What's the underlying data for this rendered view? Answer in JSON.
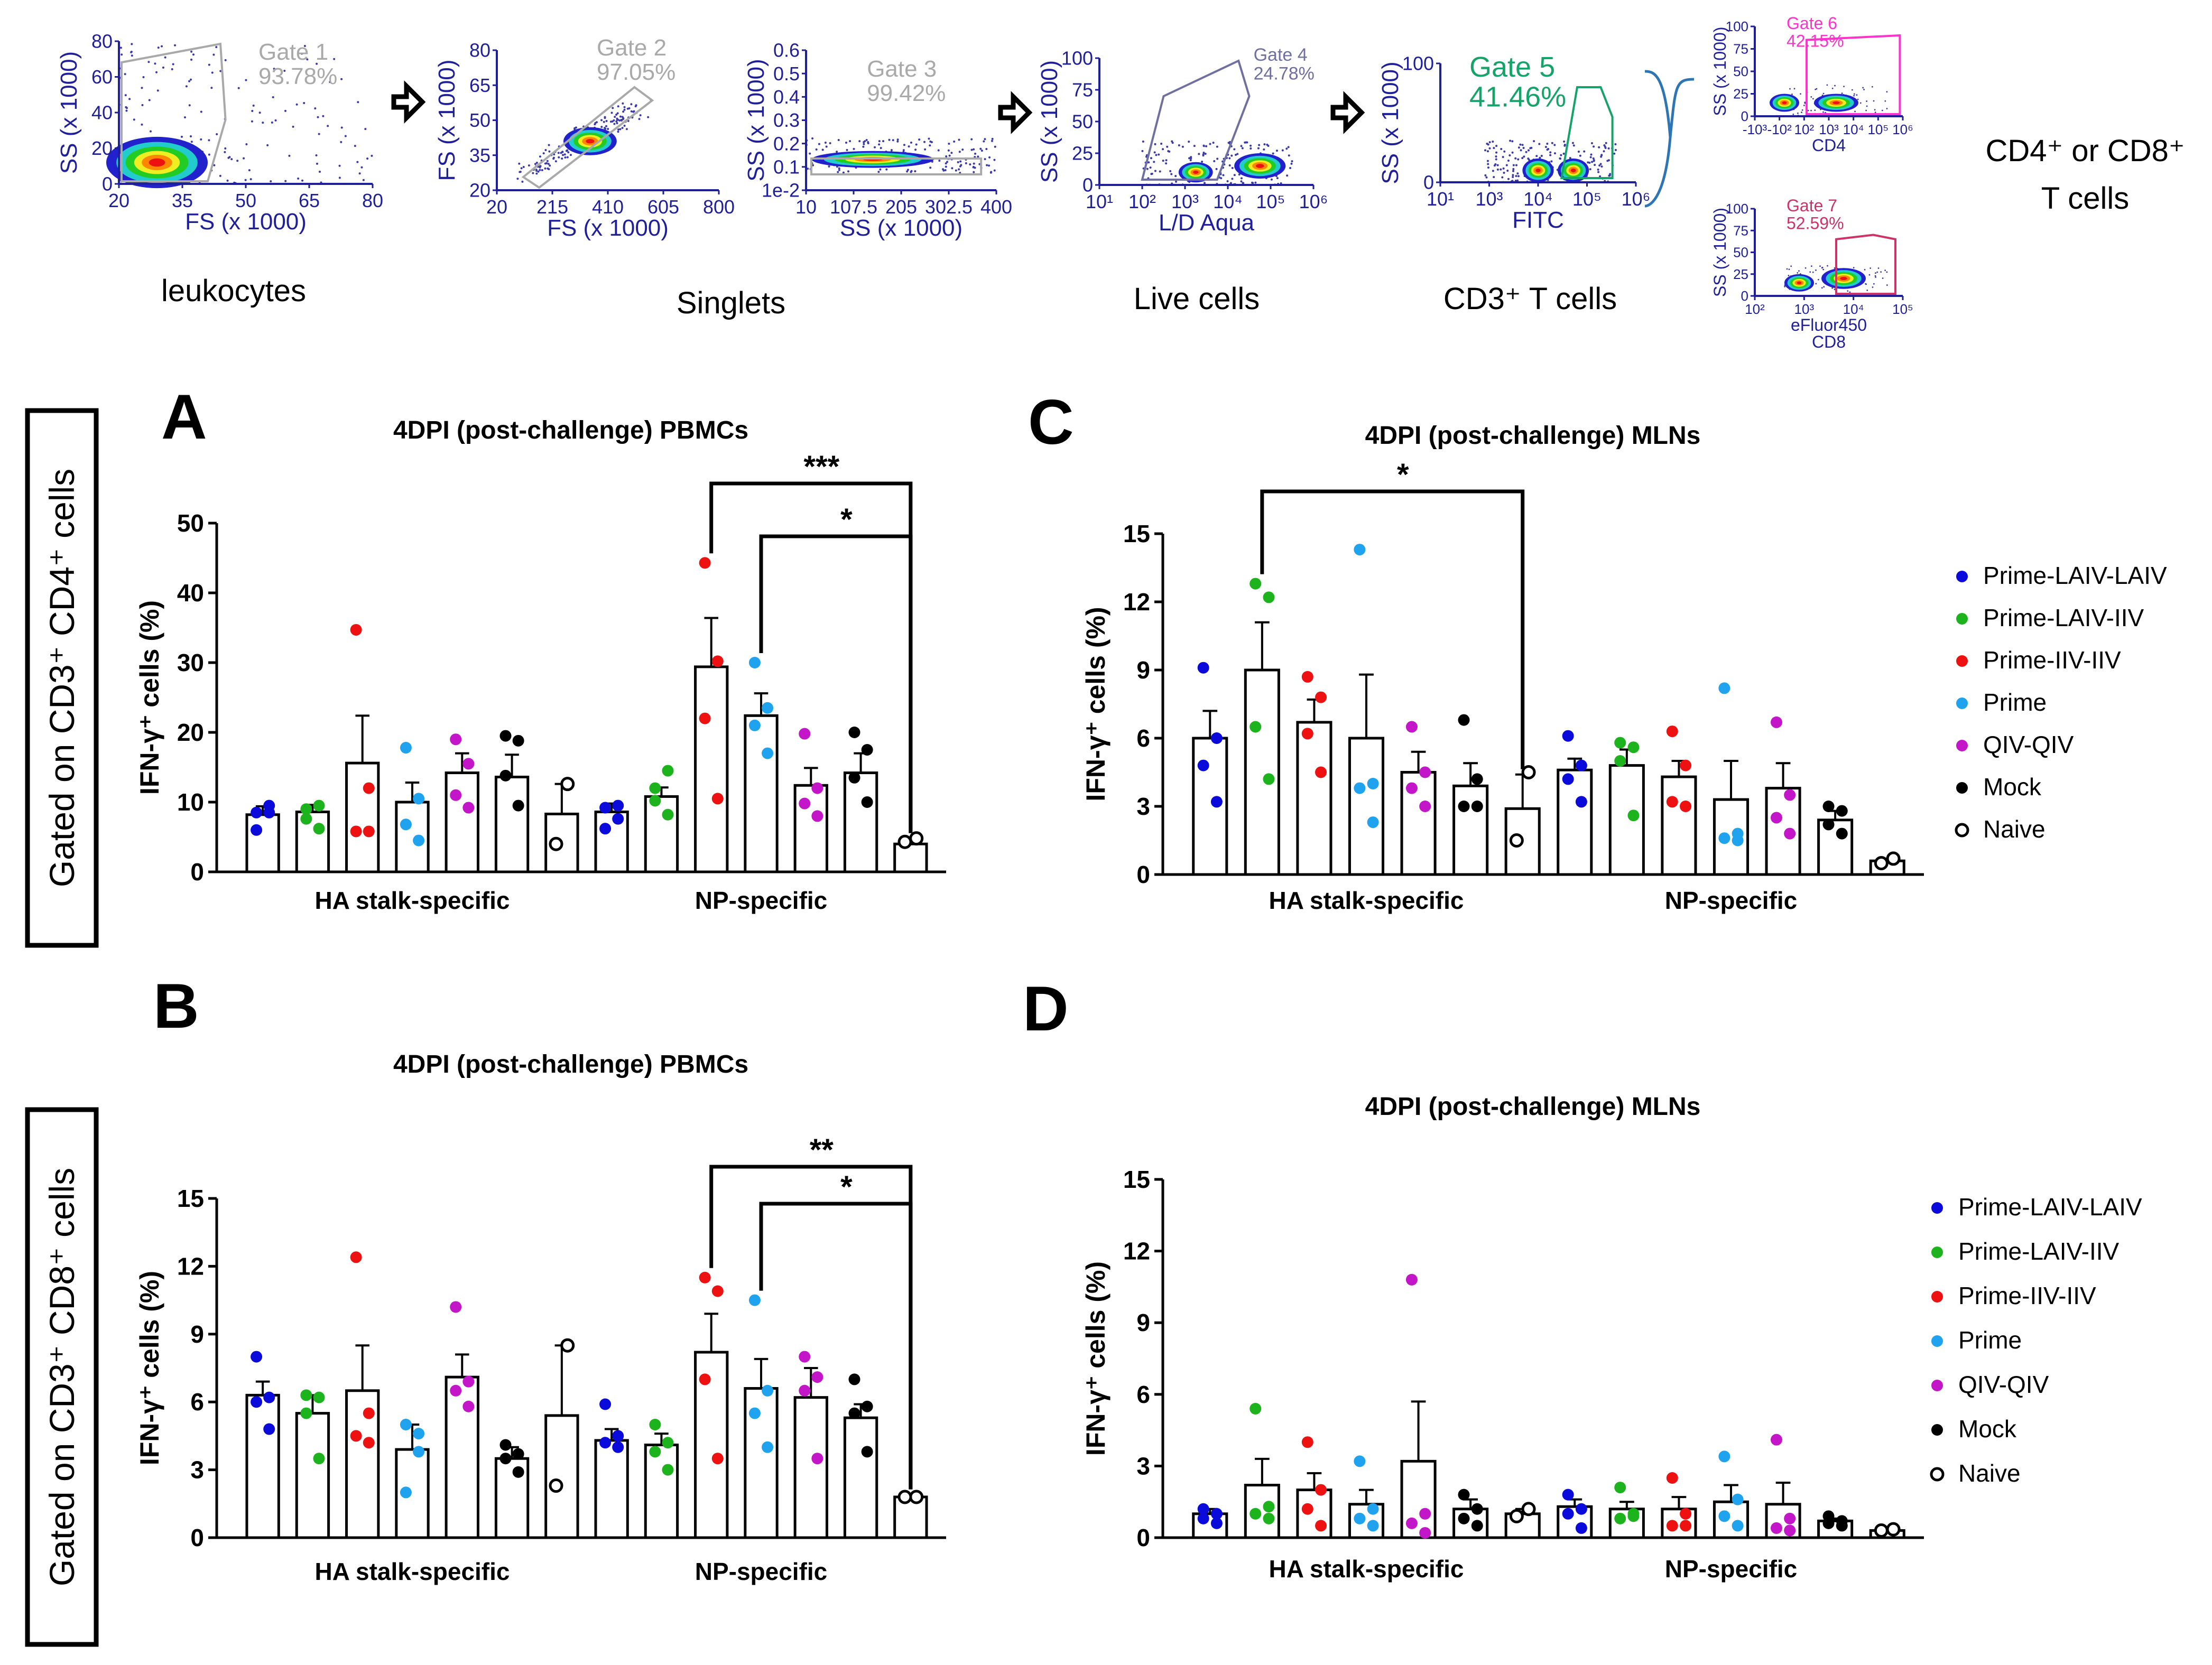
{
  "gating": {
    "plots": [
      {
        "id": "p1",
        "xlabel": "FS (x 1000)",
        "ylabel": "SS (x 1000)",
        "xticks": [
          "20",
          "35",
          "50",
          "65",
          "80"
        ],
        "yticks": [
          "0",
          "20",
          "40",
          "60",
          "80"
        ],
        "gate_name": "Gate 1",
        "gate_pct": "93.78%",
        "caption": "leukocytes"
      },
      {
        "id": "p2",
        "xlabel": "FS (x 1000)",
        "ylabel": "FS (x 1000)",
        "xticks": [
          "20",
          "215",
          "410",
          "605",
          "800"
        ],
        "yticks": [
          "20",
          "35",
          "50",
          "65",
          "80"
        ],
        "gate_name": "Gate 2",
        "gate_pct": "97.05%",
        "caption": "Singlets"
      },
      {
        "id": "p3",
        "xlabel": "SS (x 1000)",
        "ylabel": "SS (x 1000)",
        "xticks": [
          "10",
          "107.5",
          "205",
          "302.5",
          "400"
        ],
        "yticks": [
          "1e-2",
          "0.1",
          "0.2",
          "0.3",
          "0.4",
          "0.5",
          "0.6"
        ],
        "gate_name": "Gate 3",
        "gate_pct": "99.42%",
        "caption": ""
      },
      {
        "id": "p4",
        "xlabel": "L/D Aqua",
        "ylabel": "SS (x 1000)",
        "xticks": [
          "10¹",
          "10²",
          "10³",
          "10⁴",
          "10⁵",
          "10⁶"
        ],
        "yticks": [
          "0",
          "25",
          "50",
          "75",
          "100"
        ],
        "gate_name": "Gate 4",
        "gate_pct": "24.78%",
        "caption": "Live cells"
      },
      {
        "id": "p5",
        "xlabel": "FITC",
        "ylabel": "SS (x 1000)",
        "xticks": [
          "10¹",
          "10³",
          "10⁴",
          "10⁵",
          "10⁶"
        ],
        "yticks": [
          "0",
          "100"
        ],
        "gate_name": "Gate 5",
        "gate_pct": "41.46%",
        "caption": "CD3⁺ T cells"
      },
      {
        "id": "p6",
        "xlabel": "CD4",
        "ylabel": "SS (x 1000)",
        "xticks": [
          "-10³",
          "-10²",
          "10²",
          "10³",
          "10⁴",
          "10⁵",
          "10⁶"
        ],
        "yticks": [
          "0",
          "25",
          "50",
          "75",
          "100"
        ],
        "gate_name": "Gate 6",
        "gate_pct": "42.15%",
        "caption": ""
      },
      {
        "id": "p7",
        "xlabel": "eFluor450",
        "xlabel2": "CD8",
        "ylabel": "SS (x 1000)",
        "xticks": [
          "10²",
          "10³",
          "10⁴",
          "10⁵"
        ],
        "yticks": [
          "0",
          "25",
          "50",
          "75",
          "100"
        ],
        "gate_name": "Gate 7",
        "gate_pct": "52.59%",
        "caption": ""
      }
    ],
    "final_label_line1": "CD4⁺ or CD8⁺",
    "final_label_line2": "T cells"
  },
  "side_labels": {
    "top": "Gated on CD3⁺ CD4⁺ cells",
    "bottom": "Gated on CD3⁺ CD8⁺ cells"
  },
  "legend": [
    {
      "name": "Prime-LAIV-LAIV",
      "color": "#0a0adb",
      "filled": true
    },
    {
      "name": "Prime-LAIV-IIV",
      "color": "#1db31d",
      "filled": true
    },
    {
      "name": "Prime-IIV-IIV",
      "color": "#ee1111",
      "filled": true
    },
    {
      "name": "Prime",
      "color": "#1fa3ef",
      "filled": true
    },
    {
      "name": "QIV-QIV",
      "color": "#c216c8",
      "filled": true
    },
    {
      "name": "Mock",
      "color": "#000000",
      "filled": true
    },
    {
      "name": "Naive",
      "color": "#000000",
      "filled": false
    }
  ],
  "chart_data": [
    {
      "panel": "A",
      "type": "bar",
      "title": "4DPI (post-challenge) PBMCs",
      "ylabel": "IFN-γ⁺ cells (%)",
      "ylim": [
        0,
        50
      ],
      "yticks": [
        "0",
        "10",
        "20",
        "30",
        "40",
        "50"
      ],
      "categories": [
        "HA stalk-specific",
        "NP-specific"
      ],
      "series": [
        {
          "name": "Prime-LAIV-LAIV",
          "means": [
            8.2,
            8.6
          ],
          "sem": [
            1.2,
            1.2
          ],
          "points": [
            [
              8.5,
              9.5,
              6.0,
              8.5
            ],
            [
              9.2,
              7.6,
              6.2,
              9.5
            ]
          ]
        },
        {
          "name": "Prime-LAIV-IIV",
          "means": [
            8.6,
            10.8
          ],
          "sem": [
            1.0,
            1.3
          ],
          "points": [
            [
              7.6,
              6.2,
              9.0,
              9.5
            ],
            [
              10.2,
              14.5,
              12.0,
              8.2
            ]
          ]
        },
        {
          "name": "Prime-IIV-IIV",
          "means": [
            15.6,
            29.4
          ],
          "sem": [
            6.8,
            7.0
          ],
          "points": [
            [
              34.7,
              12.0,
              5.8,
              5.8
            ],
            [
              44.3,
              30.2,
              22.0,
              10.5
            ]
          ]
        },
        {
          "name": "Prime",
          "means": [
            10.0,
            22.4
          ],
          "sem": [
            2.8,
            3.2
          ],
          "points": [
            [
              17.8,
              10.5,
              6.8,
              4.5
            ],
            [
              30.0,
              23.5,
              21.0,
              17.0
            ]
          ]
        },
        {
          "name": "QIV-QIV",
          "means": [
            14.2,
            12.4
          ],
          "sem": [
            2.8,
            2.5
          ],
          "points": [
            [
              19.0,
              15.5,
              11.0,
              9.2
            ],
            [
              19.8,
              12.0,
              9.8,
              8.0
            ]
          ]
        },
        {
          "name": "Mock",
          "means": [
            13.6,
            14.2
          ],
          "sem": [
            3.2,
            2.8
          ],
          "points": [
            [
              19.5,
              18.8,
              13.8,
              9.5
            ],
            [
              20.0,
              17.5,
              13.5,
              10.0
            ]
          ]
        },
        {
          "name": "Naive",
          "means": [
            8.3,
            4.0
          ],
          "sem": [
            4.3,
            0.8
          ],
          "points": [
            [
              12.6,
              4.0
            ],
            [
              4.8,
              4.3
            ]
          ]
        }
      ],
      "brackets": [
        {
          "group": 1,
          "from": 2,
          "to": 6,
          "label": "***"
        },
        {
          "group": 1,
          "from": 3,
          "to": 6,
          "label": "*"
        }
      ]
    },
    {
      "panel": "B",
      "type": "bar",
      "title": "4DPI (post-challenge) PBMCs",
      "ylabel": "IFN-γ⁺ cells (%)",
      "ylim": [
        0,
        15
      ],
      "yticks": [
        "0",
        "3",
        "6",
        "9",
        "12",
        "15"
      ],
      "categories": [
        "HA stalk-specific",
        "NP-specific"
      ],
      "series": [
        {
          "name": "Prime-LAIV-LAIV",
          "means": [
            6.3,
            4.3
          ],
          "sem": [
            0.6,
            0.5
          ],
          "points": [
            [
              8.0,
              6.2,
              6.0,
              4.8
            ],
            [
              5.9,
              4.5,
              4.2,
              4.0
            ]
          ]
        },
        {
          "name": "Prime-LAIV-IIV",
          "means": [
            5.5,
            4.1
          ],
          "sem": [
            0.8,
            0.5
          ],
          "points": [
            [
              6.3,
              6.2,
              5.5,
              3.5
            ],
            [
              5.0,
              4.2,
              3.8,
              3.0
            ]
          ]
        },
        {
          "name": "Prime-IIV-IIV",
          "means": [
            6.5,
            8.2
          ],
          "sem": [
            2.0,
            1.7
          ],
          "points": [
            [
              12.4,
              5.5,
              4.5,
              4.2
            ],
            [
              11.5,
              10.9,
              7.0,
              3.5
            ]
          ]
        },
        {
          "name": "Prime",
          "means": [
            3.9,
            6.6
          ],
          "sem": [
            1.1,
            1.3
          ],
          "points": [
            [
              5.0,
              4.6,
              2.0,
              3.8
            ],
            [
              10.5,
              6.5,
              5.5,
              4.0
            ]
          ]
        },
        {
          "name": "QIV-QIV",
          "means": [
            7.1,
            6.2
          ],
          "sem": [
            1.0,
            1.3
          ],
          "points": [
            [
              10.2,
              6.9,
              6.5,
              5.8
            ],
            [
              8.0,
              7.1,
              6.5,
              3.5
            ]
          ]
        },
        {
          "name": "Mock",
          "means": [
            3.5,
            5.3
          ],
          "sem": [
            0.5,
            0.6
          ],
          "points": [
            [
              4.1,
              3.7,
              3.5,
              2.9
            ],
            [
              7.0,
              5.8,
              5.5,
              3.8
            ]
          ]
        },
        {
          "name": "Naive",
          "means": [
            5.4,
            1.8
          ],
          "sem": [
            3.1,
            0.1
          ],
          "points": [
            [
              8.5,
              2.3
            ],
            [
              1.8,
              1.8
            ]
          ]
        }
      ],
      "brackets": [
        {
          "group": 1,
          "from": 2,
          "to": 6,
          "label": "**"
        },
        {
          "group": 1,
          "from": 3,
          "to": 6,
          "label": "*"
        }
      ]
    },
    {
      "panel": "C",
      "type": "bar",
      "title": "4DPI (post-challenge) MLNs",
      "ylabel": "IFN-γ⁺ cells (%)",
      "ylim": [
        0,
        15
      ],
      "yticks": [
        "0",
        "3",
        "6",
        "9",
        "12",
        "15"
      ],
      "categories": [
        "HA stalk-specific",
        "NP-specific"
      ],
      "series": [
        {
          "name": "Prime-LAIV-LAIV",
          "means": [
            6.0,
            4.6
          ],
          "sem": [
            1.2,
            0.5
          ],
          "points": [
            [
              9.1,
              6.0,
              4.8,
              3.2
            ],
            [
              6.1,
              4.8,
              4.2,
              3.2
            ]
          ]
        },
        {
          "name": "Prime-LAIV-IIV",
          "means": [
            9.0,
            4.8
          ],
          "sem": [
            2.1,
            0.7
          ],
          "points": [
            [
              12.8,
              12.2,
              6.5,
              4.2
            ],
            [
              5.8,
              5.6,
              5.0,
              2.6
            ]
          ]
        },
        {
          "name": "Prime-IIV-IIV",
          "means": [
            6.7,
            4.3
          ],
          "sem": [
            1.0,
            0.7
          ],
          "points": [
            [
              8.7,
              7.8,
              6.2,
              4.5
            ],
            [
              6.3,
              4.8,
              3.2,
              3.0
            ]
          ]
        },
        {
          "name": "Prime",
          "means": [
            6.0,
            3.3
          ],
          "sem": [
            2.8,
            1.7
          ],
          "points": [
            [
              14.3,
              4.0,
              3.8,
              2.3
            ],
            [
              8.2,
              1.8,
              1.6,
              1.5
            ]
          ]
        },
        {
          "name": "QIV-QIV",
          "means": [
            4.5,
            3.8
          ],
          "sem": [
            0.9,
            1.1
          ],
          "points": [
            [
              6.5,
              4.5,
              3.8,
              3.0
            ],
            [
              6.7,
              3.5,
              2.5,
              1.8
            ]
          ]
        },
        {
          "name": "Mock",
          "means": [
            3.9,
            2.4
          ],
          "sem": [
            1.0,
            0.4
          ],
          "points": [
            [
              6.8,
              4.2,
              3.0,
              3.0
            ],
            [
              3.0,
              2.8,
              2.2,
              1.8
            ]
          ]
        },
        {
          "name": "Naive",
          "means": [
            2.9,
            0.6
          ],
          "sem": [
            1.5,
            0.1
          ],
          "points": [
            [
              4.5,
              1.5
            ],
            [
              0.7,
              0.5
            ]
          ]
        }
      ],
      "brackets": [
        {
          "group": 0,
          "from": 1,
          "to": 6,
          "label": "*"
        }
      ]
    },
    {
      "panel": "D",
      "type": "bar",
      "title": "4DPI (post-challenge) MLNs",
      "ylabel": "IFN-γ⁺ cells (%)",
      "ylim": [
        0,
        15
      ],
      "yticks": [
        "0",
        "3",
        "6",
        "9",
        "12",
        "15"
      ],
      "categories": [
        "HA stalk-specific",
        "NP-specific"
      ],
      "series": [
        {
          "name": "Prime-LAIV-LAIV",
          "means": [
            1.0,
            1.3
          ],
          "sem": [
            0.2,
            0.3
          ],
          "points": [
            [
              1.2,
              1.0,
              0.8,
              0.6
            ],
            [
              1.8,
              1.2,
              1.0,
              0.4
            ]
          ]
        },
        {
          "name": "Prime-LAIV-IIV",
          "means": [
            2.2,
            1.2
          ],
          "sem": [
            1.1,
            0.3
          ],
          "points": [
            [
              5.4,
              1.3,
              1.0,
              0.8
            ],
            [
              2.1,
              1.0,
              0.8,
              0.9
            ]
          ]
        },
        {
          "name": "Prime-IIV-IIV",
          "means": [
            2.0,
            1.2
          ],
          "sem": [
            0.7,
            0.5
          ],
          "points": [
            [
              4.0,
              2.0,
              1.2,
              0.5
            ],
            [
              2.5,
              1.0,
              0.5,
              0.5
            ]
          ]
        },
        {
          "name": "Prime",
          "means": [
            1.4,
            1.5
          ],
          "sem": [
            0.6,
            0.7
          ],
          "points": [
            [
              3.2,
              1.2,
              0.8,
              0.5
            ],
            [
              3.4,
              1.6,
              0.9,
              0.5
            ]
          ]
        },
        {
          "name": "QIV-QIV",
          "means": [
            3.2,
            1.4
          ],
          "sem": [
            2.5,
            0.9
          ],
          "points": [
            [
              10.8,
              1.0,
              0.6,
              0.2
            ],
            [
              4.1,
              0.8,
              0.4,
              0.3
            ]
          ]
        },
        {
          "name": "Mock",
          "means": [
            1.2,
            0.7
          ],
          "sem": [
            0.4,
            0.1
          ],
          "points": [
            [
              1.8,
              1.2,
              0.8,
              0.5
            ],
            [
              0.9,
              0.7,
              0.6,
              0.5
            ]
          ]
        },
        {
          "name": "Naive",
          "means": [
            1.0,
            0.3
          ],
          "sem": [
            0.2,
            0.05
          ],
          "points": [
            [
              1.2,
              0.9
            ],
            [
              0.35,
              0.3
            ]
          ]
        }
      ],
      "brackets": []
    }
  ]
}
